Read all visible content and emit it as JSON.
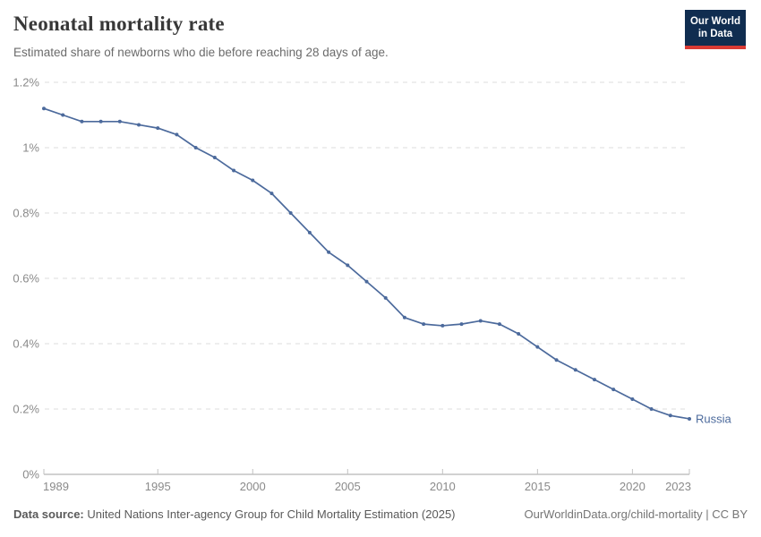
{
  "header": {
    "title": "Neonatal mortality rate",
    "subtitle": "Estimated share of newborns who die before reaching 28 days of age.",
    "logo": {
      "line1": "Our World",
      "line2": "in Data"
    }
  },
  "chart_data": {
    "type": "line",
    "title": "Neonatal mortality rate",
    "units": "%",
    "x": [
      1989,
      1990,
      1991,
      1992,
      1993,
      1994,
      1995,
      1996,
      1997,
      1998,
      1999,
      2000,
      2001,
      2002,
      2003,
      2004,
      2005,
      2006,
      2007,
      2008,
      2009,
      2010,
      2011,
      2012,
      2013,
      2014,
      2015,
      2016,
      2017,
      2018,
      2019,
      2020,
      2021,
      2022,
      2023
    ],
    "series": [
      {
        "name": "Russia",
        "color": "#4C6A9C",
        "values": [
          1.12,
          1.1,
          1.08,
          1.08,
          1.08,
          1.07,
          1.06,
          1.04,
          1.0,
          0.97,
          0.93,
          0.9,
          0.86,
          0.8,
          0.74,
          0.68,
          0.64,
          0.59,
          0.54,
          0.48,
          0.46,
          0.455,
          0.46,
          0.47,
          0.46,
          0.43,
          0.39,
          0.35,
          0.32,
          0.29,
          0.26,
          0.23,
          0.2,
          0.18,
          0.17
        ]
      }
    ],
    "end_label": "Russia",
    "xlim": [
      1989,
      2023
    ],
    "ylim": [
      0,
      1.2
    ],
    "yticks": [
      {
        "v": 0,
        "label": "0%"
      },
      {
        "v": 0.2,
        "label": "0.2%"
      },
      {
        "v": 0.4,
        "label": "0.4%"
      },
      {
        "v": 0.6,
        "label": "0.6%"
      },
      {
        "v": 0.8,
        "label": "0.8%"
      },
      {
        "v": 1,
        "label": "1%"
      },
      {
        "v": 1.2,
        "label": "1.2%"
      }
    ],
    "xticks": [
      {
        "v": 1989,
        "label": "1989"
      },
      {
        "v": 1995,
        "label": "1995"
      },
      {
        "v": 2000,
        "label": "2000"
      },
      {
        "v": 2005,
        "label": "2005"
      },
      {
        "v": 2010,
        "label": "2010"
      },
      {
        "v": 2015,
        "label": "2015"
      },
      {
        "v": 2020,
        "label": "2020"
      },
      {
        "v": 2023,
        "label": "2023"
      }
    ],
    "grid": "horizontal-dashed",
    "legend_position": "end-of-line"
  },
  "footer": {
    "datasource_label": "Data source:",
    "datasource_text": "United Nations Inter-agency Group for Child Mortality Estimation (2025)",
    "credit": "OurWorldinData.org/child-mortality | CC BY"
  },
  "colors": {
    "line": "#4C6A9C",
    "grid": "#dedede",
    "axis": "#a3a3a3",
    "axis_tick": "#c2c2c2",
    "tick_label": "#8a8a8a",
    "logo_bg": "#102d50",
    "logo_accent": "#d93a34"
  }
}
